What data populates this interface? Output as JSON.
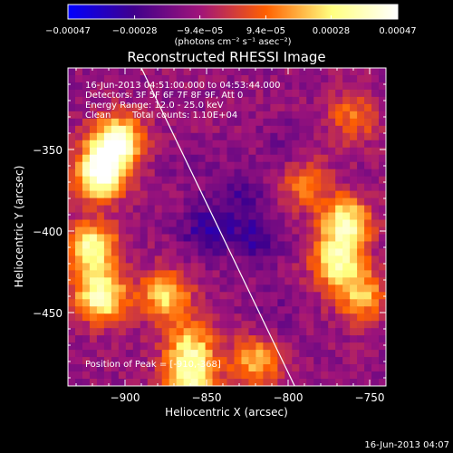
{
  "chart_data": {
    "type": "heatmap",
    "title": "Reconstructed RHESSI Image",
    "xlabel": "Heliocentric X (arcsec)",
    "ylabel": "Heliocentric Y (arcsec)",
    "xlim": [
      -935,
      -740
    ],
    "ylim": [
      -495,
      -300
    ],
    "x_ticks": [
      -900,
      -850,
      -800,
      -750
    ],
    "x_tick_labels": [
      "−900",
      "−850",
      "−800",
      "−750"
    ],
    "y_ticks": [
      -350,
      -400,
      -450
    ],
    "y_tick_labels": [
      "−350",
      "−400",
      "−450"
    ],
    "colorbar": {
      "ticks": [
        -0.00047,
        -0.00028,
        -9.4e-05,
        9.4e-05,
        0.00028,
        0.00047
      ],
      "tick_labels": [
        "−0.00047",
        "−0.00028",
        "−9.4e−05",
        "9.4e−05",
        "0.00028",
        "0.00047"
      ],
      "unit": "(photons cm⁻² s⁻¹ asec⁻²)",
      "colors": [
        "#0000ff",
        "#40008c",
        "#a0147a",
        "#ff6000",
        "#ffff80",
        "#ffffff"
      ]
    },
    "annotations": {
      "time": "16-Jun-2013 04:51:00.000 to 04:53:44.000",
      "detectors": "Detectors: 3F 5F 6F 7F 8F 9F, Att 0",
      "energy": "Energy Range: 12.0 - 25.0 keV",
      "method": "Clean",
      "counts": "Total counts: 1.10E+04",
      "peak": "Position of Peak = [-910,-368]"
    },
    "limb_line": [
      {
        "x": -890,
        "y": -300
      },
      {
        "x": -796,
        "y": -495
      }
    ],
    "grid": false,
    "heatmap_grid": {
      "nx": 44,
      "ny": 44
    },
    "bright_regions": [
      {
        "x": -915,
        "y": -365,
        "value": 0.00046
      },
      {
        "x": -905,
        "y": -345,
        "value": 0.00044
      },
      {
        "x": -920,
        "y": -410,
        "value": 0.00035
      },
      {
        "x": -915,
        "y": -440,
        "value": 0.00038
      },
      {
        "x": -875,
        "y": -440,
        "value": 0.00025
      },
      {
        "x": -860,
        "y": -470,
        "value": 0.0002
      },
      {
        "x": -820,
        "y": -480,
        "value": 0.0002
      },
      {
        "x": -860,
        "y": -490,
        "value": 0.0003
      },
      {
        "x": -765,
        "y": -395,
        "value": 0.00035
      },
      {
        "x": -770,
        "y": -420,
        "value": 0.0003
      },
      {
        "x": -755,
        "y": -440,
        "value": 0.0002
      },
      {
        "x": -790,
        "y": -370,
        "value": 0.00012
      },
      {
        "x": -760,
        "y": -330,
        "value": 0.0001
      }
    ],
    "dark_regions": [
      {
        "x": -850,
        "y": -400,
        "value": -0.0003
      },
      {
        "x": -820,
        "y": -405,
        "value": -0.00028
      },
      {
        "x": -830,
        "y": -380,
        "value": -0.00025
      },
      {
        "x": -800,
        "y": -350,
        "value": -0.0002
      },
      {
        "x": -810,
        "y": -450,
        "value": -0.00018
      },
      {
        "x": -860,
        "y": -360,
        "value": -0.00016
      }
    ],
    "background_value": -0.00012
  },
  "footer": {
    "timestamp": "16-Jun-2013 04:07"
  }
}
